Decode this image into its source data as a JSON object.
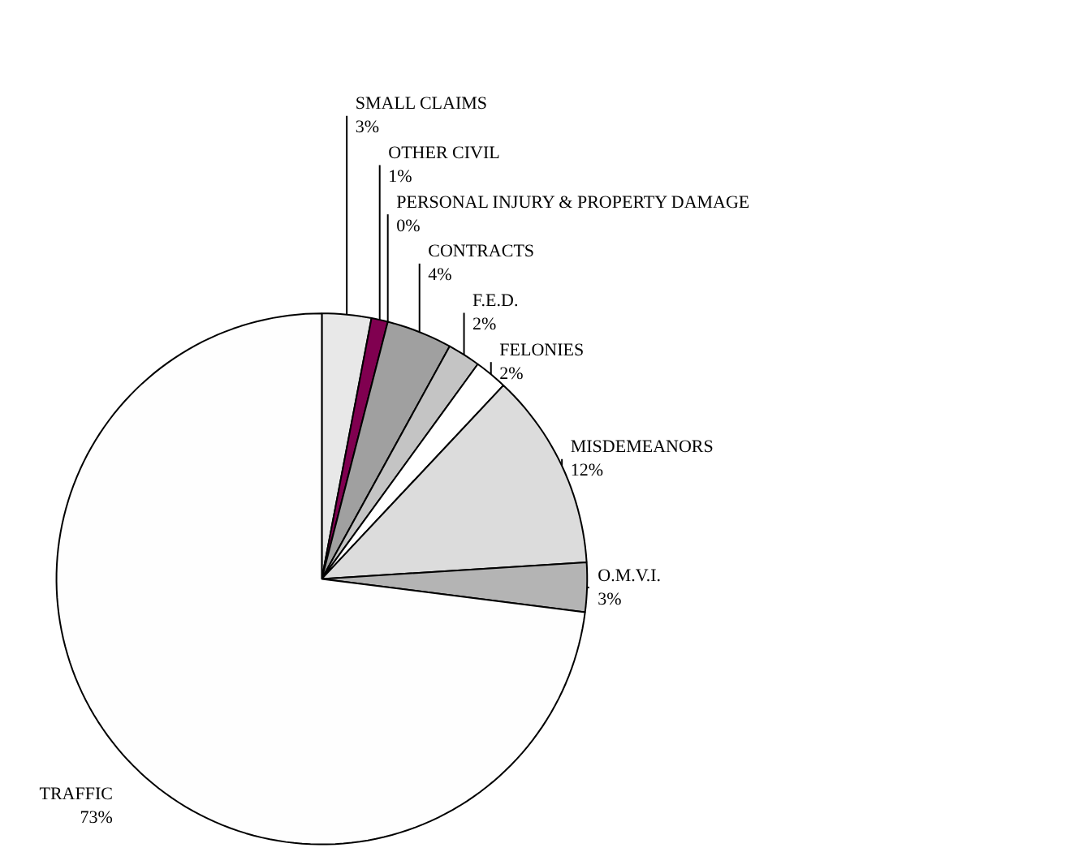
{
  "chart_data": {
    "type": "pie",
    "categories": [
      "SMALL CLAIMS",
      "OTHER CIVIL",
      "PERSONAL INJURY & PROPERTY DAMAGE",
      "CONTRACTS",
      "F.E.D.",
      "FELONIES",
      "MISDEMEANORS",
      "O.M.V.I.",
      "TRAFFIC"
    ],
    "values": [
      3,
      1,
      0,
      4,
      2,
      2,
      12,
      3,
      73
    ],
    "value_labels": [
      "3%",
      "1%",
      "0%",
      "4%",
      "2%",
      "2%",
      "12%",
      "3%",
      "73%"
    ],
    "colors": [
      "#e8e8e8",
      "#800050",
      "#000000",
      "#a0a0a0",
      "#c4c4c4",
      "#ffffff",
      "#dcdcdc",
      "#b4b4b4",
      "#fefefe"
    ]
  }
}
